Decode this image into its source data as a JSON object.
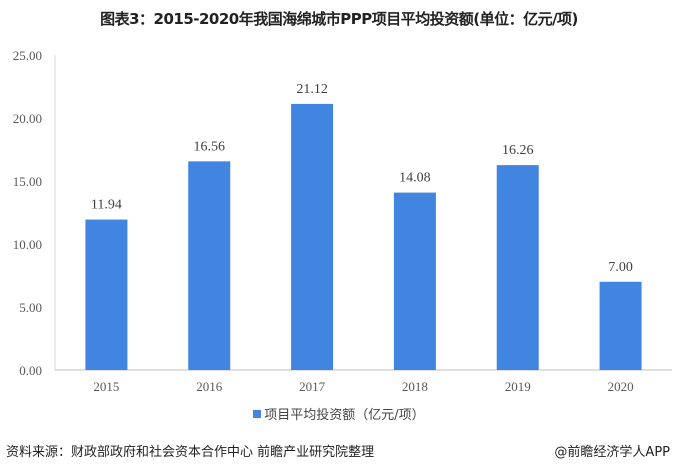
{
  "chart_data": {
    "type": "bar",
    "title": "图表3：2015-2020年我国海绵城市PPP项目平均投资额(单位：亿元/项)",
    "categories": [
      "2015",
      "2016",
      "2017",
      "2018",
      "2019",
      "2020"
    ],
    "series": [
      {
        "name": "项目平均投资额（亿元/项）",
        "values": [
          11.94,
          16.56,
          21.12,
          14.08,
          16.26,
          7.0
        ]
      }
    ],
    "data_labels": [
      "11.94",
      "16.56",
      "21.12",
      "14.08",
      "16.26",
      "7.00"
    ],
    "ylim": [
      0,
      25
    ],
    "yticks": [
      "0.00",
      "5.00",
      "10.00",
      "15.00",
      "20.00",
      "25.00"
    ],
    "grid": false,
    "legend": "bottom",
    "color": "#4285e0"
  },
  "footer": {
    "source": "资料来源：财政部政府和社会资本合作中心 前瞻产业研究院整理",
    "brand": "@前瞻经济学人APP"
  }
}
